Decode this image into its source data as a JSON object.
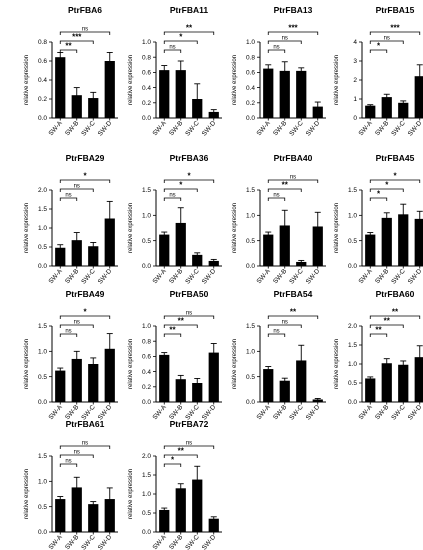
{
  "figure": {
    "ylabel": "relative expression",
    "categories": [
      "SW-A",
      "SW-B",
      "SW-C",
      "SW-D"
    ]
  },
  "chart_data": [
    {
      "type": "bar",
      "title": "PtrFBA6",
      "ylabel": "relative expression",
      "categories": [
        "SW-A",
        "SW-B",
        "SW-C",
        "SW-D"
      ],
      "values": [
        0.64,
        0.24,
        0.21,
        0.6
      ],
      "errors": [
        0.05,
        0.08,
        0.06,
        0.09
      ],
      "ylim": [
        0,
        0.8
      ],
      "yticks": [
        "0.0",
        "0.2",
        "0.4",
        "0.6",
        "0.8"
      ],
      "significance": [
        {
          "to": "SW-B",
          "label": "**"
        },
        {
          "to": "SW-C",
          "label": "***"
        },
        {
          "to": "SW-D",
          "label": "ns"
        }
      ]
    },
    {
      "type": "bar",
      "title": "PtrFBA11",
      "ylabel": "relative expression",
      "categories": [
        "SW-A",
        "SW-B",
        "SW-C",
        "SW-D"
      ],
      "values": [
        0.63,
        0.63,
        0.25,
        0.08
      ],
      "errors": [
        0.06,
        0.12,
        0.2,
        0.03
      ],
      "ylim": [
        0,
        1.0
      ],
      "yticks": [
        "0.0",
        "0.2",
        "0.4",
        "0.6",
        "0.8",
        "1.0"
      ],
      "significance": [
        {
          "to": "SW-B",
          "label": "ns"
        },
        {
          "to": "SW-C",
          "label": "*"
        },
        {
          "to": "SW-D",
          "label": "**"
        }
      ]
    },
    {
      "type": "bar",
      "title": "PtrFBA13",
      "ylabel": "relative expression",
      "categories": [
        "SW-A",
        "SW-B",
        "SW-C",
        "SW-D"
      ],
      "values": [
        0.65,
        0.62,
        0.62,
        0.15
      ],
      "errors": [
        0.05,
        0.12,
        0.04,
        0.06
      ],
      "ylim": [
        0,
        1.0
      ],
      "yticks": [
        "0.0",
        "0.2",
        "0.4",
        "0.6",
        "0.8",
        "1.0"
      ],
      "significance": [
        {
          "to": "SW-B",
          "label": "ns"
        },
        {
          "to": "SW-C",
          "label": "ns"
        },
        {
          "to": "SW-D",
          "label": "***"
        }
      ]
    },
    {
      "type": "bar",
      "title": "PtrFBA15",
      "ylabel": "relative expression",
      "categories": [
        "SW-A",
        "SW-B",
        "SW-C",
        "SW-D"
      ],
      "values": [
        0.65,
        1.1,
        0.8,
        2.2
      ],
      "errors": [
        0.05,
        0.15,
        0.1,
        0.6
      ],
      "ylim": [
        0,
        4
      ],
      "yticks": [
        "0",
        "1",
        "2",
        "3",
        "4"
      ],
      "significance": [
        {
          "to": "SW-B",
          "label": "*"
        },
        {
          "to": "SW-C",
          "label": "ns"
        },
        {
          "to": "SW-D",
          "label": "***"
        }
      ]
    },
    {
      "type": "bar",
      "title": "PtrFBA29",
      "ylabel": "relative expression",
      "categories": [
        "SW-A",
        "SW-B",
        "SW-C",
        "SW-D"
      ],
      "values": [
        0.48,
        0.68,
        0.52,
        1.25
      ],
      "errors": [
        0.08,
        0.2,
        0.1,
        0.45
      ],
      "ylim": [
        0,
        2.0
      ],
      "yticks": [
        "0.0",
        "0.5",
        "1.0",
        "1.5",
        "2.0"
      ],
      "significance": [
        {
          "to": "SW-B",
          "label": "ns"
        },
        {
          "to": "SW-C",
          "label": "ns"
        },
        {
          "to": "SW-D",
          "label": "*"
        }
      ]
    },
    {
      "type": "bar",
      "title": "PtrFBA36",
      "ylabel": "relative expression",
      "categories": [
        "SW-A",
        "SW-B",
        "SW-C",
        "SW-D"
      ],
      "values": [
        0.62,
        0.85,
        0.22,
        0.1
      ],
      "errors": [
        0.05,
        0.3,
        0.04,
        0.03
      ],
      "ylim": [
        0,
        1.5
      ],
      "yticks": [
        "0.0",
        "0.5",
        "1.0",
        "1.5"
      ],
      "significance": [
        {
          "to": "SW-B",
          "label": "ns"
        },
        {
          "to": "SW-C",
          "label": "*"
        },
        {
          "to": "SW-D",
          "label": "*"
        }
      ]
    },
    {
      "type": "bar",
      "title": "PtrFBA40",
      "ylabel": "relative expression",
      "categories": [
        "SW-A",
        "SW-B",
        "SW-C",
        "SW-D"
      ],
      "values": [
        0.62,
        0.8,
        0.08,
        0.78
      ],
      "errors": [
        0.05,
        0.3,
        0.03,
        0.28
      ],
      "ylim": [
        0,
        1.5
      ],
      "yticks": [
        "0.0",
        "0.5",
        "1.0",
        "1.5"
      ],
      "significance": [
        {
          "to": "SW-B",
          "label": "ns"
        },
        {
          "to": "SW-C",
          "label": "**"
        },
        {
          "to": "SW-D",
          "label": "ns"
        }
      ]
    },
    {
      "type": "bar",
      "title": "PtrFBA45",
      "ylabel": "relative expression",
      "categories": [
        "SW-A",
        "SW-B",
        "SW-C",
        "SW-D"
      ],
      "values": [
        0.62,
        0.95,
        1.02,
        0.93
      ],
      "errors": [
        0.04,
        0.1,
        0.2,
        0.15
      ],
      "ylim": [
        0,
        1.5
      ],
      "yticks": [
        "0.0",
        "0.5",
        "1.0",
        "1.5"
      ],
      "significance": [
        {
          "to": "SW-B",
          "label": "*"
        },
        {
          "to": "SW-C",
          "label": "*"
        },
        {
          "to": "SW-D",
          "label": "*"
        }
      ]
    },
    {
      "type": "bar",
      "title": "PtrFBA49",
      "ylabel": "relative expression",
      "categories": [
        "SW-A",
        "SW-B",
        "SW-C",
        "SW-D"
      ],
      "values": [
        0.62,
        0.85,
        0.75,
        1.05
      ],
      "errors": [
        0.05,
        0.15,
        0.12,
        0.3
      ],
      "ylim": [
        0,
        1.5
      ],
      "yticks": [
        "0.0",
        "0.5",
        "1.0",
        "1.5"
      ],
      "significance": [
        {
          "to": "SW-B",
          "label": "ns"
        },
        {
          "to": "SW-C",
          "label": "ns"
        },
        {
          "to": "SW-D",
          "label": "*"
        }
      ]
    },
    {
      "type": "bar",
      "title": "PtrFBA50",
      "ylabel": "relative expression",
      "categories": [
        "SW-A",
        "SW-B",
        "SW-C",
        "SW-D"
      ],
      "values": [
        0.62,
        0.3,
        0.25,
        0.65
      ],
      "errors": [
        0.03,
        0.05,
        0.06,
        0.12
      ],
      "ylim": [
        0,
        1.0
      ],
      "yticks": [
        "0.0",
        "0.2",
        "0.4",
        "0.6",
        "0.8",
        "1.0"
      ],
      "significance": [
        {
          "to": "SW-B",
          "label": "**"
        },
        {
          "to": "SW-C",
          "label": "**"
        },
        {
          "to": "SW-D",
          "label": "ns"
        }
      ]
    },
    {
      "type": "bar",
      "title": "PtrFBA54",
      "ylabel": "relative expression",
      "categories": [
        "SW-A",
        "SW-B",
        "SW-C",
        "SW-D"
      ],
      "values": [
        0.65,
        0.42,
        0.82,
        0.05
      ],
      "errors": [
        0.05,
        0.05,
        0.3,
        0.02
      ],
      "ylim": [
        0,
        1.5
      ],
      "yticks": [
        "0.0",
        "0.5",
        "1.0",
        "1.5"
      ],
      "significance": [
        {
          "to": "SW-B",
          "label": "ns"
        },
        {
          "to": "SW-C",
          "label": "ns"
        },
        {
          "to": "SW-D",
          "label": "**"
        }
      ]
    },
    {
      "type": "bar",
      "title": "PtrFBA60",
      "ylabel": "relative expression",
      "categories": [
        "SW-A",
        "SW-B",
        "SW-C",
        "SW-D"
      ],
      "values": [
        0.62,
        1.02,
        0.98,
        1.18
      ],
      "errors": [
        0.04,
        0.12,
        0.1,
        0.3
      ],
      "ylim": [
        0,
        2.0
      ],
      "yticks": [
        "0.0",
        "0.5",
        "1.0",
        "1.5",
        "2.0"
      ],
      "significance": [
        {
          "to": "SW-B",
          "label": "**"
        },
        {
          "to": "SW-C",
          "label": "**"
        },
        {
          "to": "SW-D",
          "label": "**"
        }
      ]
    },
    {
      "type": "bar",
      "title": "PtrFBA61",
      "ylabel": "relative expression",
      "categories": [
        "SW-A",
        "SW-B",
        "SW-C",
        "SW-D"
      ],
      "values": [
        0.65,
        0.88,
        0.55,
        0.65
      ],
      "errors": [
        0.05,
        0.2,
        0.05,
        0.22
      ],
      "ylim": [
        0,
        1.5
      ],
      "yticks": [
        "0.0",
        "0.5",
        "1.0",
        "1.5"
      ],
      "significance": [
        {
          "to": "SW-B",
          "label": "ns"
        },
        {
          "to": "SW-C",
          "label": "ns"
        },
        {
          "to": "SW-D",
          "label": "ns"
        }
      ]
    },
    {
      "type": "bar",
      "title": "PtrFBA72",
      "ylabel": "relative expression",
      "categories": [
        "SW-A",
        "SW-B",
        "SW-C",
        "SW-D"
      ],
      "values": [
        0.58,
        1.15,
        1.38,
        0.35
      ],
      "errors": [
        0.05,
        0.12,
        0.35,
        0.05
      ],
      "ylim": [
        0,
        2.0
      ],
      "yticks": [
        "0.0",
        "0.5",
        "1.0",
        "1.5",
        "2.0"
      ],
      "significance": [
        {
          "to": "SW-B",
          "label": "*"
        },
        {
          "to": "SW-C",
          "label": "**"
        },
        {
          "to": "SW-D",
          "label": "ns"
        }
      ]
    }
  ]
}
